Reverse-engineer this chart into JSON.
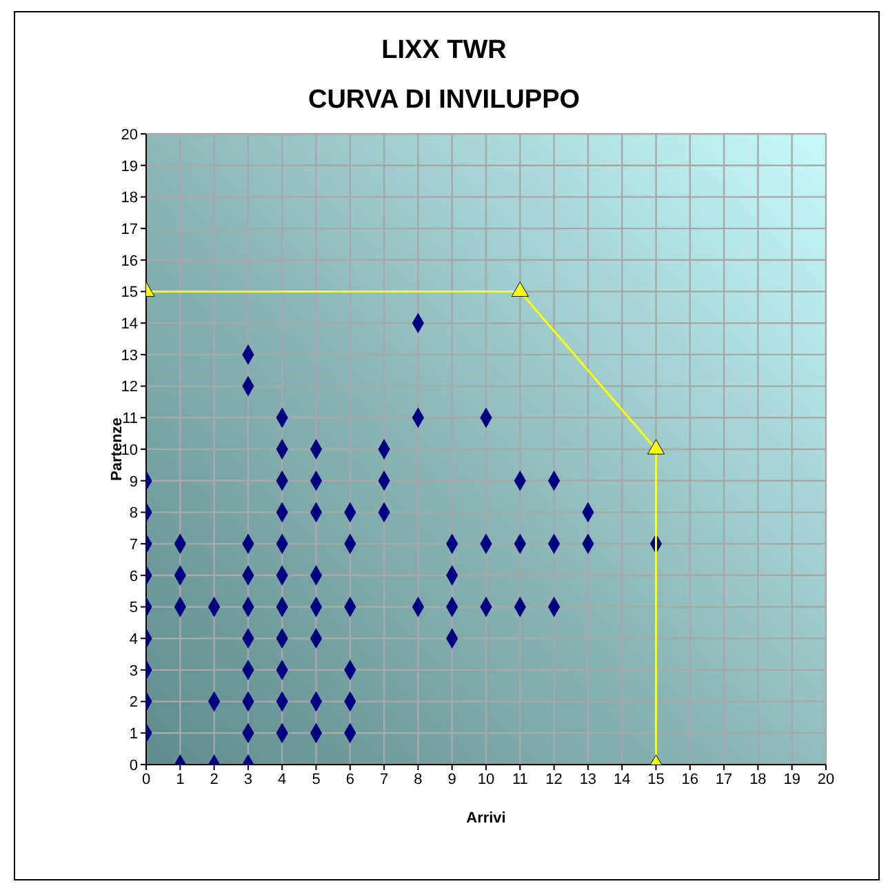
{
  "chart_data": {
    "type": "scatter",
    "title": "LIXX TWR",
    "subtitle": "CURVA DI INVILUPPO",
    "xlabel": "Arrivi",
    "ylabel": "Partenze",
    "xlim": [
      0,
      20
    ],
    "ylim": [
      0,
      20
    ],
    "xticks": [
      0,
      1,
      2,
      3,
      4,
      5,
      6,
      7,
      8,
      9,
      10,
      11,
      12,
      13,
      14,
      15,
      16,
      17,
      18,
      19,
      20
    ],
    "yticks": [
      0,
      1,
      2,
      3,
      4,
      5,
      6,
      7,
      8,
      9,
      10,
      11,
      12,
      13,
      14,
      15,
      16,
      17,
      18,
      19,
      20
    ],
    "grid": true,
    "series": [
      {
        "color": "#000080",
        "marker": "diamond",
        "x": [
          0,
          0,
          0,
          0,
          0,
          0,
          0,
          0,
          0,
          1,
          1,
          1,
          1,
          2,
          2,
          2,
          3,
          3,
          3,
          3,
          3,
          3,
          3,
          3,
          3,
          3,
          4,
          4,
          4,
          4,
          4,
          4,
          4,
          4,
          4,
          4,
          4,
          5,
          5,
          5,
          5,
          5,
          5,
          5,
          5,
          6,
          6,
          6,
          6,
          6,
          6,
          7,
          7,
          7,
          8,
          8,
          8,
          9,
          9,
          9,
          9,
          10,
          10,
          10,
          11,
          11,
          11,
          12,
          12,
          12,
          13,
          13,
          15
        ],
        "values": [
          1,
          2,
          3,
          4,
          5,
          6,
          7,
          8,
          9,
          0,
          5,
          6,
          7,
          0,
          2,
          5,
          0,
          1,
          2,
          3,
          4,
          5,
          6,
          7,
          12,
          13,
          1,
          2,
          3,
          4,
          5,
          6,
          7,
          8,
          9,
          10,
          11,
          1,
          2,
          4,
          5,
          6,
          8,
          9,
          10,
          1,
          2,
          3,
          5,
          7,
          8,
          8,
          9,
          10,
          5,
          11,
          14,
          4,
          5,
          6,
          7,
          5,
          7,
          11,
          5,
          7,
          9,
          5,
          7,
          9,
          7,
          8,
          7
        ]
      },
      {
        "type": "line",
        "color": "#ffff00",
        "marker": "triangle",
        "line_style": "solid",
        "x": [
          0,
          11,
          15,
          15
        ],
        "values": [
          15,
          15,
          10,
          0
        ]
      }
    ]
  }
}
